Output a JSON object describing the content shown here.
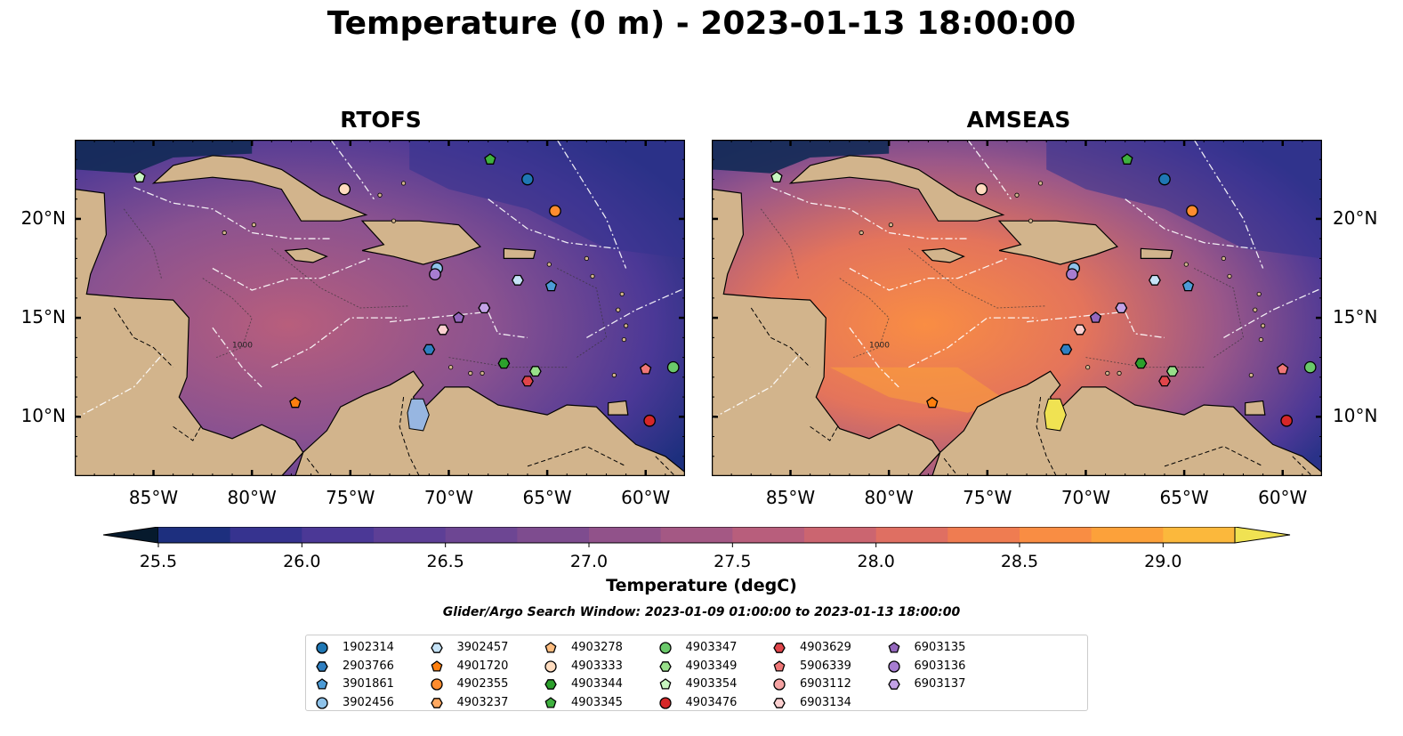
{
  "title": "Temperature (0 m) - 2023-01-13 18:00:00",
  "panels": [
    {
      "id": "rtofs",
      "title": "RTOFS"
    },
    {
      "id": "amseas",
      "title": "AMSEAS"
    }
  ],
  "map": {
    "lon_range": [
      -89,
      -58
    ],
    "lat_range": [
      7,
      24
    ],
    "x_ticks": [
      "85°W",
      "80°W",
      "75°W",
      "70°W",
      "65°W",
      "60°W"
    ],
    "y_ticks": [
      "20°N",
      "15°N",
      "10°N"
    ],
    "land_color": "#d2b48c",
    "lake_color": "#97b6e1",
    "contour_label": "1000"
  },
  "colorbar": {
    "label": "Temperature (degC)",
    "min": 25.5,
    "max": 29.0,
    "ticks": [
      "25.5",
      "26.0",
      "26.5",
      "27.0",
      "27.5",
      "28.0",
      "28.5",
      "29.0"
    ],
    "extend": "both",
    "colors": [
      "#061a2d",
      "#0b2a55",
      "#1d2f7e",
      "#36338f",
      "#4b3896",
      "#5d3f96",
      "#6d4693",
      "#7e4c8f",
      "#91528a",
      "#a45884",
      "#b85e7c",
      "#cb6570",
      "#df6f62",
      "#ef7c51",
      "#f98d43",
      "#fca13a",
      "#fbb83c",
      "#f5cd45",
      "#f0e252"
    ]
  },
  "search_window": "Glider/Argo Search Window: 2023-01-09 01:00:00 to 2023-01-13 18:00:00",
  "platforms": [
    {
      "id": "1902314",
      "shape": "circle",
      "color": "#1f77b4",
      "lon": -66,
      "lat": 22
    },
    {
      "id": "2903766",
      "shape": "hexagon",
      "color": "#2f7fc1",
      "lon": -71,
      "lat": 13.4
    },
    {
      "id": "3901861",
      "shape": "pentagon",
      "color": "#4c9bd6",
      "lon": -64.8,
      "lat": 16.6
    },
    {
      "id": "3902456",
      "shape": "circle",
      "color": "#8fc3ea",
      "lon": -70.6,
      "lat": 17.5
    },
    {
      "id": "3902457",
      "shape": "hexagon",
      "color": "#c6e3f7",
      "lon": -66.5,
      "lat": 16.9
    },
    {
      "id": "4901720",
      "shape": "pentagon",
      "color": "#ff7f0e",
      "lon": -77.8,
      "lat": 10.7
    },
    {
      "id": "4902355",
      "shape": "circle",
      "color": "#ff8c2e",
      "lon": -64.6,
      "lat": 20.4
    },
    {
      "id": "4903237",
      "shape": "hexagon",
      "color": "#ffa860",
      "lon": null,
      "lat": null
    },
    {
      "id": "4903278",
      "shape": "pentagon",
      "color": "#ffbd80",
      "lon": null,
      "lat": null
    },
    {
      "id": "4903333",
      "shape": "circle",
      "color": "#ffdcbf",
      "lon": -75.3,
      "lat": 21.5
    },
    {
      "id": "4903344",
      "shape": "hexagon",
      "color": "#2ca02c",
      "lon": -67.2,
      "lat": 12.7
    },
    {
      "id": "4903345",
      "shape": "pentagon",
      "color": "#3fb13f",
      "lon": -67.9,
      "lat": 23
    },
    {
      "id": "4903347",
      "shape": "circle",
      "color": "#6ac96a",
      "lon": -58.6,
      "lat": 12.5
    },
    {
      "id": "4903349",
      "shape": "hexagon",
      "color": "#98df8a",
      "lon": -65.6,
      "lat": 12.3
    },
    {
      "id": "4903354",
      "shape": "pentagon",
      "color": "#c8f5c0",
      "lon": -85.7,
      "lat": 22.1
    },
    {
      "id": "4903476",
      "shape": "circle",
      "color": "#d62728",
      "lon": -59.8,
      "lat": 9.8
    },
    {
      "id": "4903629",
      "shape": "hexagon",
      "color": "#e0454a",
      "lon": -66,
      "lat": 11.8
    },
    {
      "id": "5906339",
      "shape": "pentagon",
      "color": "#f07777",
      "lon": -60,
      "lat": 12.4
    },
    {
      "id": "6903112",
      "shape": "circle",
      "color": "#f5a3a3",
      "lon": null,
      "lat": null
    },
    {
      "id": "6903134",
      "shape": "hexagon",
      "color": "#fcd0d0",
      "lon": -70.3,
      "lat": 14.4
    },
    {
      "id": "6903135",
      "shape": "pentagon",
      "color": "#9467bd",
      "lon": -69.5,
      "lat": 15
    },
    {
      "id": "6903136",
      "shape": "circle",
      "color": "#a77dd1",
      "lon": -70.7,
      "lat": 17.2
    },
    {
      "id": "6903137",
      "shape": "hexagon",
      "color": "#c3a2e6",
      "lon": -68.2,
      "lat": 15.5
    }
  ]
}
